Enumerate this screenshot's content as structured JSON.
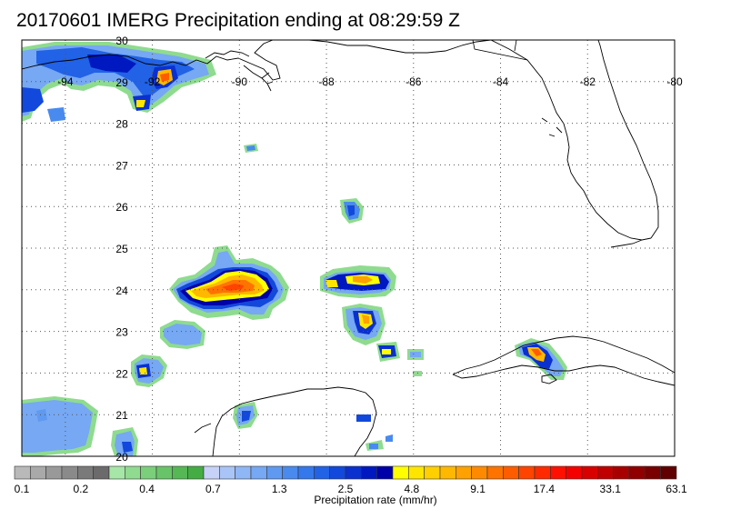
{
  "title": "20170601 IMERG Precipitation ending at 08:29:59 Z",
  "map": {
    "lon_range": [
      -95,
      -80
    ],
    "lat_range": [
      20,
      30
    ],
    "lon_labels": [
      "-94",
      "-92",
      "-90",
      "-88",
      "-86",
      "-84",
      "-82",
      "-80"
    ],
    "lon_label_values": [
      -94,
      -92,
      -90,
      -88,
      -86,
      -84,
      -82,
      -80
    ],
    "lat_labels": [
      "20",
      "21",
      "22",
      "23",
      "24",
      "25",
      "26",
      "27",
      "28",
      "29",
      "30"
    ],
    "lat_label_values": [
      20,
      21,
      22,
      23,
      24,
      25,
      26,
      27,
      28,
      29,
      30
    ],
    "grid": "dotted",
    "land_outline_color": "#000000"
  },
  "colorbar": {
    "label": "Precipitation rate (mm/hr)",
    "tick_labels": [
      "0.1",
      "0.2",
      "0.4",
      "0.7",
      "1.3",
      "2.5",
      "4.8",
      "9.1",
      "17.4",
      "33.1",
      "63.1"
    ],
    "colors": [
      "#b9b9b9",
      "#a9a9a9",
      "#999999",
      "#8a8a8a",
      "#7a7a7a",
      "#6b6b6b",
      "#a6e6a6",
      "#8fdb8f",
      "#7bcf7b",
      "#68c468",
      "#55b855",
      "#43ad43",
      "#c6d2f7",
      "#a9c4f7",
      "#8fb6f5",
      "#76a8f3",
      "#5f9af0",
      "#498aee",
      "#3478ec",
      "#2162e6",
      "#1248db",
      "#0a30cf",
      "#0018c0",
      "#0000a8",
      "#ffff00",
      "#ffe600",
      "#ffcf00",
      "#ffb800",
      "#ffa100",
      "#ff8a00",
      "#ff7300",
      "#ff5c00",
      "#ff4400",
      "#ff2a00",
      "#ff1000",
      "#f50000",
      "#d90000",
      "#c00000",
      "#a80000",
      "#900000",
      "#780000",
      "#600000"
    ]
  }
}
